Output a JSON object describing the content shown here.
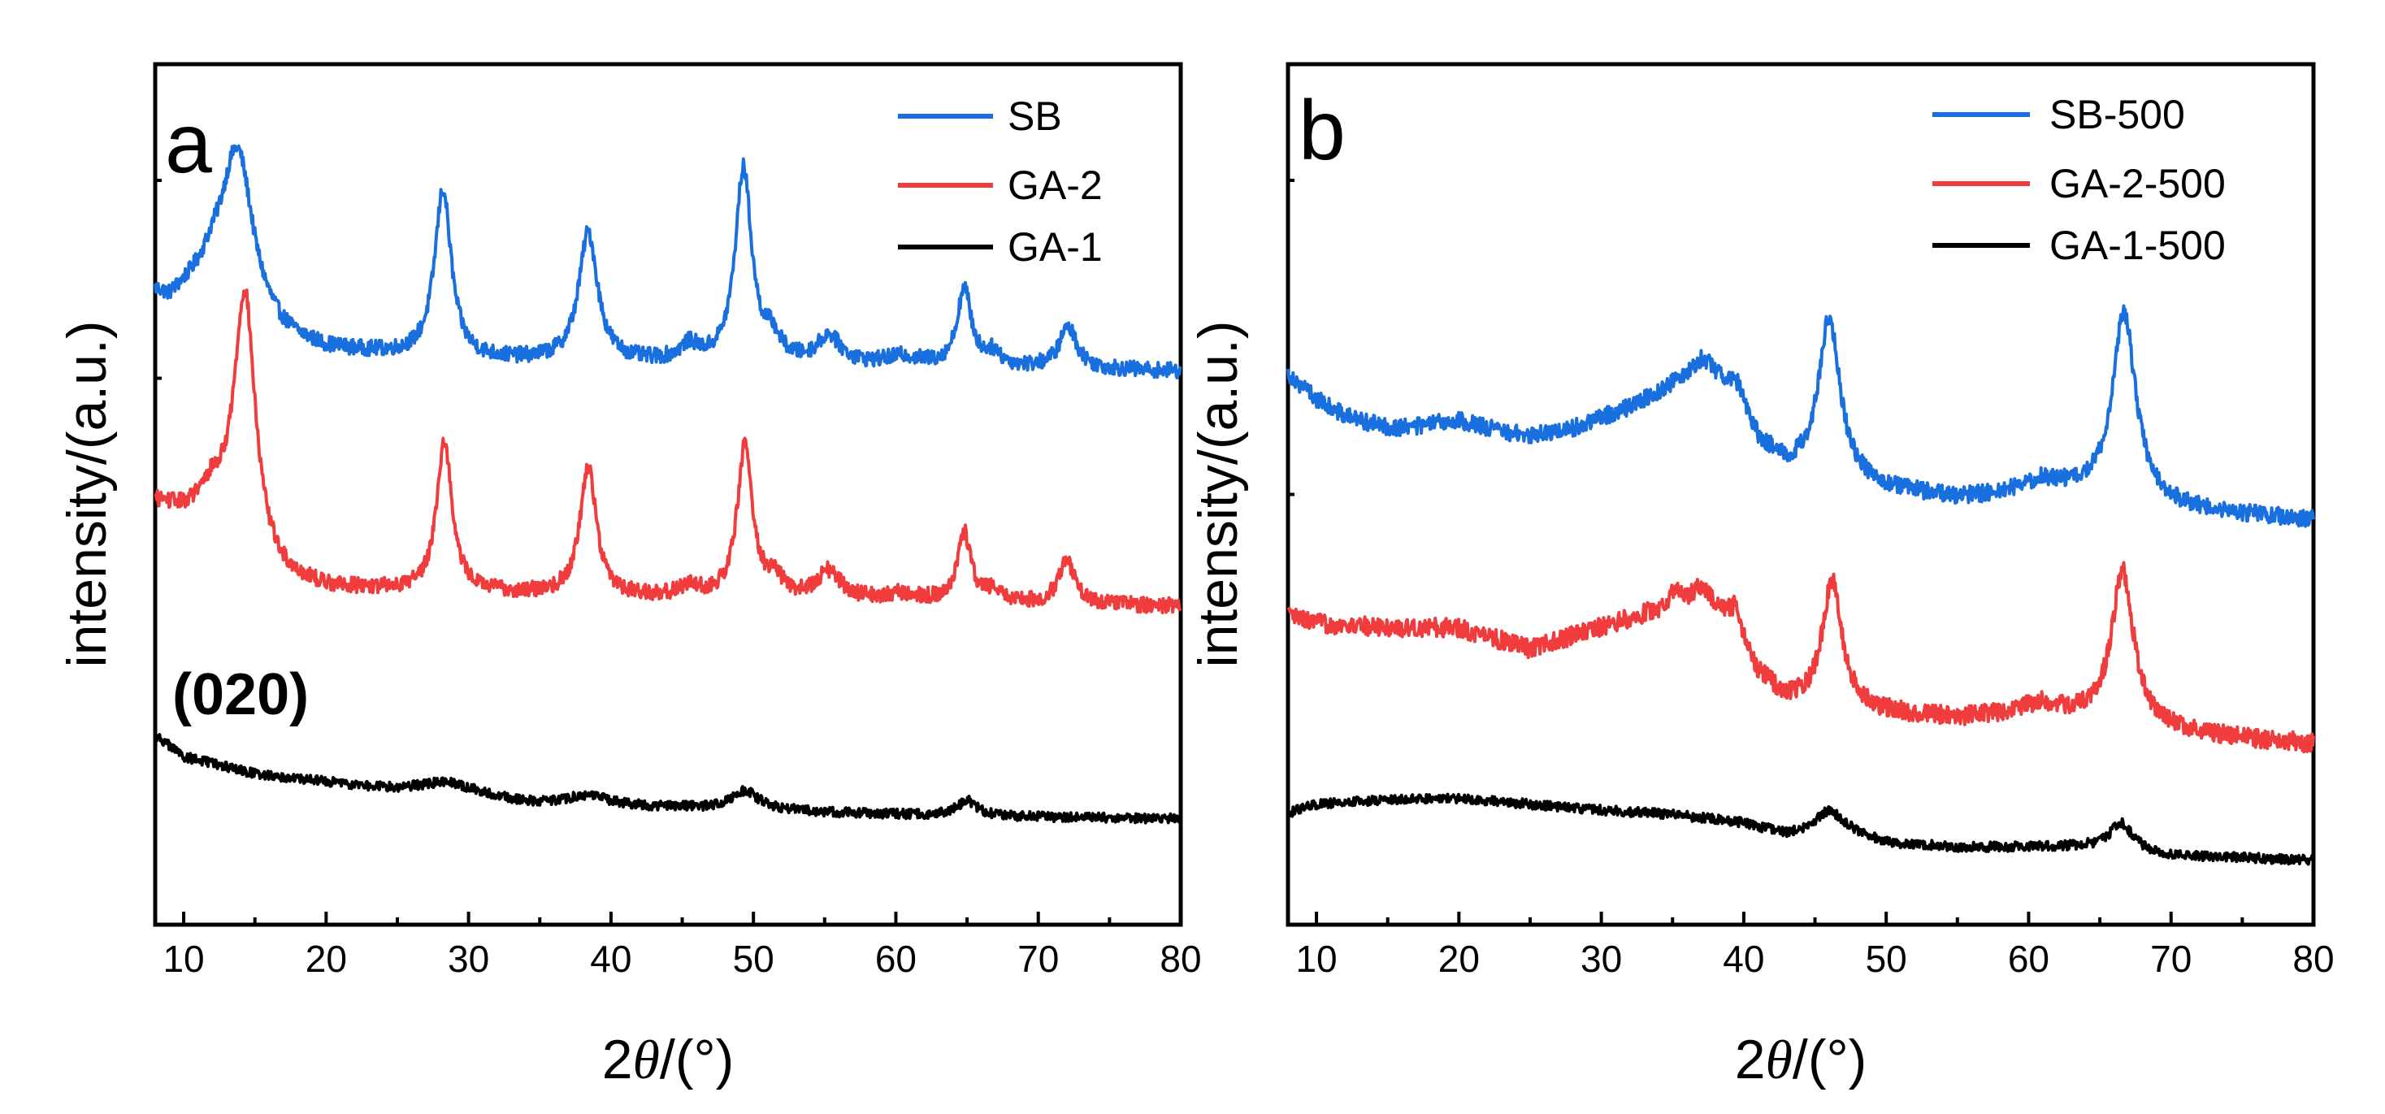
{
  "chart_data": [
    {
      "type": "line",
      "panel": "a",
      "xlabel": "2θ/(°)",
      "xlabel_prefix": "2",
      "xlabel_symbol": "θ",
      "xlabel_suffix": "/(°)",
      "ylabel": "intensity/(a.u.)",
      "xlim": [
        8,
        80
      ],
      "ylim": [
        0,
        100
      ],
      "xticks": [
        10,
        20,
        30,
        40,
        50,
        60,
        70,
        80
      ],
      "legend_position": "top-right",
      "annotations": [
        {
          "text": "(020)",
          "x": 14.5,
          "y": 25.5
        }
      ],
      "series": [
        {
          "name": "SB",
          "color": "#1a6fdf",
          "noise": 0.9,
          "baseline": [
            [
              8,
              73
            ],
            [
              9,
              72
            ],
            [
              10,
              73
            ],
            [
              12,
              74.5
            ],
            [
              15,
              69
            ],
            [
              17,
              67.5
            ],
            [
              20,
              66.5
            ],
            [
              25,
              66
            ],
            [
              30,
              65.5
            ],
            [
              40,
              65.2
            ],
            [
              50,
              65
            ],
            [
              60,
              64.8
            ],
            [
              70,
              64.6
            ],
            [
              80,
              64.3
            ]
          ],
          "peaks": [
            [
              13.8,
              19,
              1.4
            ],
            [
              28.2,
              19.5,
              0.7
            ],
            [
              38.4,
              15,
              0.8
            ],
            [
              45.5,
              1.8,
              0.8
            ],
            [
              49.3,
              22.5,
              0.7
            ],
            [
              51.3,
              2.5,
              0.7
            ],
            [
              55.3,
              3.2,
              1.0
            ],
            [
              60.5,
              1,
              1.5
            ],
            [
              64.8,
              9,
              0.6
            ],
            [
              66.8,
              1.5,
              0.7
            ],
            [
              72.1,
              4.8,
              0.75
            ]
          ]
        },
        {
          "name": "GA-2",
          "color": "#f03c3c",
          "noise": 0.9,
          "baseline": [
            [
              8,
              49
            ],
            [
              9,
              48.5
            ],
            [
              10,
              48
            ],
            [
              11,
              48.5
            ],
            [
              12,
              49.5
            ],
            [
              15,
              42
            ],
            [
              17,
              40
            ],
            [
              20,
              39
            ],
            [
              25,
              38.7
            ],
            [
              30,
              38.5
            ],
            [
              40,
              38
            ],
            [
              50,
              37.8
            ],
            [
              60,
              37.5
            ],
            [
              70,
              37.2
            ],
            [
              80,
              37
            ]
          ],
          "peaks": [
            [
              14.3,
              30,
              0.9
            ],
            [
              28.3,
              17.5,
              0.65
            ],
            [
              38.4,
              15,
              0.7
            ],
            [
              45.5,
              1.2,
              0.8
            ],
            [
              49.4,
              17.5,
              0.65
            ],
            [
              51.5,
              2,
              0.7
            ],
            [
              55.3,
              3.2,
              1.0
            ],
            [
              60.5,
              0.8,
              1.5
            ],
            [
              64.8,
              8,
              0.55
            ],
            [
              66.9,
              1.5,
              0.7
            ],
            [
              72.0,
              5,
              0.7
            ]
          ]
        },
        {
          "name": "GA-1",
          "color": "#000000",
          "noise": 0.55,
          "baseline": [
            [
              8,
              22
            ],
            [
              10,
              19.5
            ],
            [
              15,
              17.5
            ],
            [
              20,
              16.5
            ],
            [
              25,
              15.5
            ],
            [
              30,
              14.8
            ],
            [
              34,
              14
            ],
            [
              40,
              13.6
            ],
            [
              45,
              13.5
            ],
            [
              50,
              13.3
            ],
            [
              55,
              13
            ],
            [
              60,
              12.8
            ],
            [
              70,
              12.5
            ],
            [
              80,
              12.3
            ]
          ],
          "peaks": [
            [
              28.5,
              1.5,
              2.5
            ],
            [
              38.5,
              1.2,
              2
            ],
            [
              49.4,
              2.2,
              1.2
            ],
            [
              65.0,
              1.8,
              0.8
            ]
          ]
        }
      ]
    },
    {
      "type": "line",
      "panel": "b",
      "xlabel": "2θ/(°)",
      "xlabel_prefix": "2",
      "xlabel_symbol": "θ",
      "xlabel_suffix": "/(°)",
      "ylabel": "intensity/(a.u.)",
      "xlim": [
        8,
        80
      ],
      "ylim": [
        0,
        100
      ],
      "xticks": [
        10,
        20,
        30,
        40,
        50,
        60,
        70,
        80
      ],
      "legend_position": "top-right",
      "annotations": [],
      "series": [
        {
          "name": "SB-500",
          "color": "#1a6fdf",
          "noise": 1.0,
          "baseline": [
            [
              8,
              64
            ],
            [
              10,
              61
            ],
            [
              12,
              59
            ],
            [
              15,
              57.5
            ],
            [
              20,
              57
            ],
            [
              25,
              56.5
            ],
            [
              28,
              57.5
            ],
            [
              32,
              60
            ],
            [
              35,
              62.5
            ],
            [
              37,
              64
            ],
            [
              39,
              62
            ],
            [
              41,
              56
            ],
            [
              43,
              53
            ],
            [
              46,
              52
            ],
            [
              50,
              50.5
            ],
            [
              55,
              49.5
            ],
            [
              58,
              50
            ],
            [
              61,
              51.5
            ],
            [
              64,
              50
            ],
            [
              67,
              49
            ],
            [
              72,
              48
            ],
            [
              80,
              47
            ]
          ],
          "peaks": [
            [
              20,
              1.5,
              2.5
            ],
            [
              37.2,
              1.5,
              1.2
            ],
            [
              39.6,
              2,
              0.6
            ],
            [
              46.0,
              18.5,
              0.9
            ],
            [
              66.7,
              22,
              1.0
            ]
          ]
        },
        {
          "name": "GA-2-500",
          "color": "#f03c3c",
          "noise": 1.1,
          "baseline": [
            [
              8,
              36
            ],
            [
              10,
              35
            ],
            [
              15,
              34.5
            ],
            [
              20,
              34.5
            ],
            [
              23,
              33
            ],
            [
              25,
              32
            ],
            [
              28,
              33.5
            ],
            [
              32,
              35.5
            ],
            [
              35,
              37
            ],
            [
              37,
              37.5
            ],
            [
              39,
              35
            ],
            [
              41,
              29
            ],
            [
              43,
              26
            ],
            [
              46,
              25
            ],
            [
              50,
              24.5
            ],
            [
              55,
              24
            ],
            [
              58,
              24.5
            ],
            [
              61,
              25.5
            ],
            [
              64,
              24
            ],
            [
              67,
              23
            ],
            [
              72,
              22
            ],
            [
              80,
              21
            ]
          ],
          "peaks": [
            [
              35.2,
              2,
              0.25
            ],
            [
              37.0,
              1.5,
              1.0
            ],
            [
              39.5,
              3,
              0.45
            ],
            [
              46.2,
              15,
              0.85
            ],
            [
              66.6,
              18,
              0.95
            ]
          ]
        },
        {
          "name": "GA-1-500",
          "color": "#000000",
          "noise": 0.55,
          "baseline": [
            [
              8,
              13
            ],
            [
              10,
              14
            ],
            [
              15,
              14.5
            ],
            [
              20,
              14.7
            ],
            [
              25,
              14
            ],
            [
              30,
              13.3
            ],
            [
              35,
              12.8
            ],
            [
              40,
              11.8
            ],
            [
              43,
              10.5
            ],
            [
              45,
              11
            ],
            [
              47,
              11
            ],
            [
              50,
              9.5
            ],
            [
              55,
              9
            ],
            [
              60,
              9
            ],
            [
              64,
              9
            ],
            [
              67,
              8.5
            ],
            [
              70,
              8
            ],
            [
              80,
              7.5
            ]
          ],
          "peaks": [
            [
              46.0,
              2.2,
              1.0
            ],
            [
              66.5,
              3.2,
              1.0
            ]
          ]
        }
      ]
    }
  ]
}
